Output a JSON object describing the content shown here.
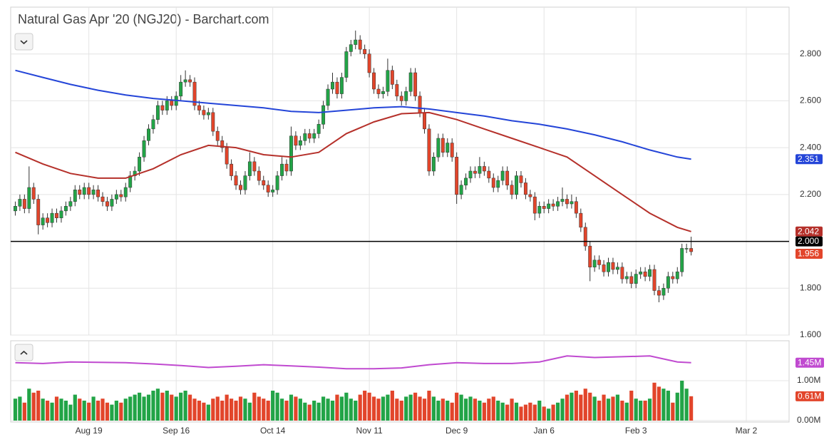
{
  "chart_data": [
    {
      "type": "candlestick",
      "title": "Natural Gas Apr '20 (NGJ20) - Barchart.com",
      "up_color": "#22a447",
      "down_color": "#e2452b",
      "open": [
        2.13,
        2.15,
        2.18,
        2.14,
        2.23,
        2.18,
        2.07,
        2.1,
        2.08,
        2.12,
        2.1,
        2.13,
        2.15,
        2.17,
        2.22,
        2.2,
        2.23,
        2.2,
        2.22,
        2.19,
        2.17,
        2.15,
        2.18,
        2.2,
        2.19,
        2.23,
        2.28,
        2.3,
        2.36,
        2.43,
        2.48,
        2.52,
        2.58,
        2.56,
        2.6,
        2.58,
        2.62,
        2.68,
        2.69,
        2.68,
        2.58,
        2.56,
        2.54,
        2.55,
        2.47,
        2.43,
        2.4,
        2.33,
        2.28,
        2.24,
        2.22,
        2.28,
        2.34,
        2.3,
        2.26,
        2.24,
        2.21,
        2.22,
        2.28,
        2.33,
        2.3,
        2.45,
        2.41,
        2.43,
        2.46,
        2.44,
        2.46,
        2.5,
        2.58,
        2.65,
        2.68,
        2.63,
        2.7,
        2.81,
        2.84,
        2.86,
        2.82,
        2.8,
        2.72,
        2.65,
        2.63,
        2.64,
        2.73,
        2.67,
        2.62,
        2.6,
        2.64,
        2.72,
        2.62,
        2.55,
        2.48,
        2.3,
        2.36,
        2.44,
        2.38,
        2.42,
        2.36,
        2.2,
        2.24,
        2.27,
        2.3,
        2.29,
        2.32,
        2.3,
        2.27,
        2.23,
        2.26,
        2.3,
        2.24,
        2.2,
        2.28,
        2.25,
        2.2,
        2.19,
        2.12,
        2.15,
        2.14,
        2.16,
        2.15,
        2.17,
        2.18,
        2.16,
        2.17,
        2.12,
        2.06,
        1.98,
        1.89,
        1.92,
        1.9,
        1.87,
        1.91,
        1.88,
        1.89,
        1.84,
        1.85,
        1.82,
        1.86,
        1.87,
        1.85,
        1.88,
        1.79,
        1.77,
        1.8,
        1.85,
        1.84,
        1.87,
        1.97,
        1.97
      ],
      "high": [
        2.17,
        2.2,
        2.2,
        2.32,
        2.25,
        2.2,
        2.12,
        2.12,
        2.14,
        2.14,
        2.15,
        2.17,
        2.19,
        2.24,
        2.24,
        2.25,
        2.25,
        2.24,
        2.24,
        2.21,
        2.19,
        2.2,
        2.22,
        2.22,
        2.25,
        2.3,
        2.32,
        2.38,
        2.45,
        2.5,
        2.54,
        2.6,
        2.6,
        2.62,
        2.62,
        2.64,
        2.71,
        2.73,
        2.71,
        2.7,
        2.6,
        2.58,
        2.57,
        2.57,
        2.49,
        2.45,
        2.42,
        2.35,
        2.3,
        2.26,
        2.3,
        2.38,
        2.36,
        2.32,
        2.28,
        2.26,
        2.24,
        2.3,
        2.36,
        2.35,
        2.49,
        2.47,
        2.45,
        2.48,
        2.48,
        2.48,
        2.52,
        2.6,
        2.67,
        2.72,
        2.7,
        2.72,
        2.83,
        2.86,
        2.9,
        2.88,
        2.84,
        2.82,
        2.74,
        2.67,
        2.66,
        2.78,
        2.75,
        2.69,
        2.64,
        2.66,
        2.74,
        2.74,
        2.64,
        2.57,
        2.5,
        2.38,
        2.46,
        2.46,
        2.44,
        2.44,
        2.38,
        2.26,
        2.29,
        2.32,
        2.32,
        2.36,
        2.34,
        2.32,
        2.29,
        2.28,
        2.32,
        2.32,
        2.26,
        2.3,
        2.3,
        2.27,
        2.22,
        2.21,
        2.17,
        2.17,
        2.18,
        2.18,
        2.19,
        2.23,
        2.2,
        2.2,
        2.19,
        2.14,
        2.08,
        2.0,
        1.94,
        1.94,
        1.92,
        1.93,
        1.93,
        1.91,
        1.91,
        1.87,
        1.87,
        1.88,
        1.89,
        1.89,
        1.9,
        1.9,
        1.81,
        1.82,
        1.87,
        1.87,
        1.89,
        1.99,
        1.99,
        2.02
      ],
      "low": [
        2.11,
        2.13,
        2.12,
        2.12,
        2.16,
        2.03,
        2.05,
        2.06,
        2.06,
        2.08,
        2.08,
        2.11,
        2.13,
        2.15,
        2.18,
        2.18,
        2.18,
        2.18,
        2.17,
        2.15,
        2.13,
        2.13,
        2.16,
        2.17,
        2.17,
        2.21,
        2.26,
        2.28,
        2.34,
        2.41,
        2.46,
        2.5,
        2.54,
        2.54,
        2.56,
        2.56,
        2.6,
        2.66,
        2.66,
        2.56,
        2.54,
        2.52,
        2.52,
        2.45,
        2.41,
        2.38,
        2.31,
        2.26,
        2.22,
        2.2,
        2.2,
        2.26,
        2.28,
        2.24,
        2.22,
        2.19,
        2.19,
        2.2,
        2.26,
        2.28,
        2.28,
        2.39,
        2.39,
        2.41,
        2.42,
        2.42,
        2.44,
        2.48,
        2.56,
        2.63,
        2.61,
        2.61,
        2.68,
        2.79,
        2.82,
        2.8,
        2.78,
        2.7,
        2.63,
        2.61,
        2.61,
        2.62,
        2.65,
        2.6,
        2.58,
        2.58,
        2.62,
        2.6,
        2.53,
        2.46,
        2.28,
        2.28,
        2.34,
        2.36,
        2.36,
        2.34,
        2.16,
        2.18,
        2.22,
        2.25,
        2.27,
        2.27,
        2.28,
        2.25,
        2.21,
        2.21,
        2.24,
        2.22,
        2.18,
        2.18,
        2.23,
        2.18,
        2.17,
        2.09,
        2.1,
        2.12,
        2.12,
        2.13,
        2.13,
        2.15,
        2.14,
        2.14,
        2.1,
        2.04,
        1.96,
        1.83,
        1.87,
        1.88,
        1.85,
        1.85,
        1.86,
        1.86,
        1.82,
        1.82,
        1.8,
        1.8,
        1.84,
        1.83,
        1.83,
        1.77,
        1.74,
        1.75,
        1.78,
        1.82,
        1.82,
        1.85,
        1.95,
        1.94
      ],
      "close": [
        2.15,
        2.18,
        2.14,
        2.23,
        2.18,
        2.07,
        2.1,
        2.08,
        2.12,
        2.1,
        2.13,
        2.15,
        2.17,
        2.22,
        2.2,
        2.23,
        2.2,
        2.22,
        2.19,
        2.17,
        2.15,
        2.18,
        2.2,
        2.19,
        2.23,
        2.28,
        2.3,
        2.36,
        2.43,
        2.48,
        2.52,
        2.58,
        2.56,
        2.6,
        2.58,
        2.62,
        2.68,
        2.69,
        2.68,
        2.58,
        2.56,
        2.54,
        2.55,
        2.47,
        2.43,
        2.4,
        2.33,
        2.28,
        2.24,
        2.22,
        2.28,
        2.34,
        2.3,
        2.26,
        2.24,
        2.21,
        2.22,
        2.28,
        2.33,
        2.3,
        2.45,
        2.41,
        2.43,
        2.46,
        2.44,
        2.46,
        2.5,
        2.58,
        2.65,
        2.68,
        2.63,
        2.7,
        2.81,
        2.84,
        2.86,
        2.82,
        2.8,
        2.72,
        2.65,
        2.63,
        2.64,
        2.73,
        2.67,
        2.62,
        2.6,
        2.64,
        2.72,
        2.62,
        2.55,
        2.48,
        2.3,
        2.36,
        2.44,
        2.38,
        2.42,
        2.36,
        2.2,
        2.24,
        2.27,
        2.3,
        2.29,
        2.32,
        2.3,
        2.27,
        2.23,
        2.26,
        2.3,
        2.24,
        2.2,
        2.28,
        2.25,
        2.2,
        2.19,
        2.12,
        2.15,
        2.14,
        2.16,
        2.15,
        2.17,
        2.18,
        2.16,
        2.17,
        2.12,
        2.06,
        1.98,
        1.89,
        1.92,
        1.9,
        1.87,
        1.91,
        1.88,
        1.89,
        1.84,
        1.85,
        1.82,
        1.86,
        1.87,
        1.85,
        1.88,
        1.79,
        1.77,
        1.8,
        1.85,
        1.84,
        1.87,
        1.97,
        1.97,
        1.956
      ],
      "overlays": [
        {
          "color": "#2445d8",
          "x": [
            0,
            6,
            12,
            18,
            24,
            30,
            36,
            42,
            48,
            54,
            60,
            66,
            72,
            78,
            84,
            90,
            96,
            102,
            108,
            114,
            120,
            126,
            132,
            138,
            144,
            147
          ],
          "values": [
            2.73,
            2.7,
            2.67,
            2.645,
            2.625,
            2.61,
            2.6,
            2.59,
            2.58,
            2.57,
            2.555,
            2.55,
            2.56,
            2.57,
            2.575,
            2.565,
            2.55,
            2.535,
            2.515,
            2.5,
            2.48,
            2.455,
            2.425,
            2.39,
            2.36,
            2.351
          ]
        },
        {
          "color": "#b5302a",
          "x": [
            0,
            6,
            12,
            18,
            24,
            30,
            36,
            42,
            48,
            54,
            60,
            66,
            72,
            78,
            84,
            90,
            96,
            102,
            108,
            114,
            120,
            126,
            132,
            138,
            144,
            147
          ],
          "values": [
            2.38,
            2.33,
            2.29,
            2.27,
            2.27,
            2.31,
            2.37,
            2.41,
            2.4,
            2.37,
            2.36,
            2.38,
            2.46,
            2.51,
            2.545,
            2.55,
            2.52,
            2.48,
            2.44,
            2.4,
            2.36,
            2.28,
            2.2,
            2.12,
            2.06,
            2.042
          ]
        }
      ],
      "hline": {
        "value": 2,
        "label": "2.000",
        "color": "#000000"
      },
      "ylim": [
        1.6,
        3.0
      ],
      "yticks": [
        {
          "value": 1.6,
          "label": "1.600"
        },
        {
          "value": 1.8,
          "label": "1.800"
        },
        {
          "value": 2.0,
          "label": "2.000"
        },
        {
          "value": 2.2,
          "label": "2.200"
        },
        {
          "value": 2.4,
          "label": "2.400"
        },
        {
          "value": 2.6,
          "label": "2.600"
        },
        {
          "value": 2.8,
          "label": "2.800"
        }
      ],
      "xlim": [
        -1,
        168.3
      ],
      "xticks": [
        {
          "value": 16,
          "label": "Aug 19"
        },
        {
          "value": 35,
          "label": "Sep 16"
        },
        {
          "value": 56,
          "label": "Oct 14"
        },
        {
          "value": 77,
          "label": "Nov 11"
        },
        {
          "value": 96,
          "label": "Dec 9"
        },
        {
          "value": 115,
          "label": "Jan 6"
        },
        {
          "value": 135,
          "label": "Feb 3"
        },
        {
          "value": 159,
          "label": "Mar 2"
        }
      ],
      "grid": true
    },
    {
      "type": "volume",
      "values": [
        0.55,
        0.6,
        0.45,
        0.8,
        0.7,
        0.75,
        0.55,
        0.5,
        0.45,
        0.6,
        0.55,
        0.5,
        0.4,
        0.65,
        0.55,
        0.5,
        0.45,
        0.6,
        0.5,
        0.55,
        0.45,
        0.4,
        0.5,
        0.45,
        0.55,
        0.6,
        0.65,
        0.7,
        0.6,
        0.65,
        0.75,
        0.8,
        0.7,
        0.75,
        0.65,
        0.6,
        0.7,
        0.75,
        0.65,
        0.55,
        0.5,
        0.45,
        0.4,
        0.55,
        0.6,
        0.5,
        0.65,
        0.55,
        0.5,
        0.6,
        0.55,
        0.45,
        0.7,
        0.6,
        0.55,
        0.5,
        0.75,
        0.7,
        0.55,
        0.5,
        0.65,
        0.6,
        0.55,
        0.45,
        0.4,
        0.5,
        0.45,
        0.6,
        0.55,
        0.5,
        0.65,
        0.6,
        0.7,
        0.55,
        0.5,
        0.65,
        0.75,
        0.7,
        0.6,
        0.55,
        0.6,
        0.65,
        0.75,
        0.55,
        0.5,
        0.6,
        0.65,
        0.7,
        0.6,
        0.55,
        0.75,
        0.6,
        0.5,
        0.55,
        0.5,
        0.45,
        0.7,
        0.65,
        0.55,
        0.6,
        0.55,
        0.5,
        0.45,
        0.55,
        0.6,
        0.5,
        0.45,
        0.4,
        0.55,
        0.45,
        0.35,
        0.4,
        0.45,
        0.4,
        0.5,
        0.35,
        0.3,
        0.4,
        0.45,
        0.55,
        0.65,
        0.7,
        0.75,
        0.65,
        0.8,
        0.7,
        0.6,
        0.5,
        0.65,
        0.55,
        0.6,
        0.65,
        0.5,
        0.45,
        0.75,
        0.55,
        0.5,
        0.5,
        0.55,
        0.95,
        0.85,
        0.8,
        0.75,
        0.45,
        0.7,
        1.0,
        0.8,
        0.61
      ],
      "last_label": "0.61M",
      "overlay": {
        "color": "#c04ad0",
        "x": [
          0,
          6,
          12,
          18,
          24,
          30,
          36,
          42,
          48,
          54,
          60,
          66,
          72,
          78,
          84,
          90,
          96,
          102,
          108,
          114,
          120,
          126,
          132,
          138,
          144,
          147
        ],
        "values": [
          1.45,
          1.43,
          1.47,
          1.46,
          1.45,
          1.42,
          1.38,
          1.33,
          1.36,
          1.4,
          1.37,
          1.34,
          1.3,
          1.3,
          1.32,
          1.4,
          1.45,
          1.43,
          1.43,
          1.47,
          1.62,
          1.58,
          1.6,
          1.62,
          1.47,
          1.45
        ],
        "last_label": "1.45M"
      },
      "ylim": [
        0,
        2.0
      ],
      "yticks": [
        {
          "value": 0,
          "label": "0.00M"
        },
        {
          "value": 1,
          "label": "1.00M"
        }
      ]
    }
  ]
}
